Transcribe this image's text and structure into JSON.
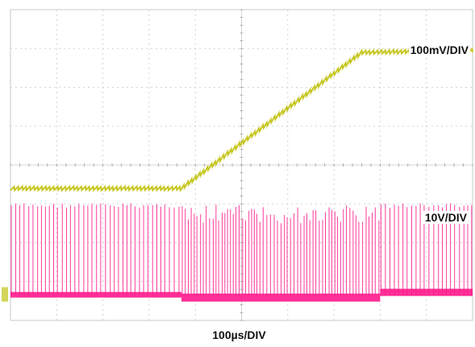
{
  "chart_data": {
    "type": "line",
    "x_divisions": 10,
    "y_divisions": 8,
    "xlabel": "100µs/DIV",
    "grid": true,
    "colors": {
      "background": "#ffffff",
      "grid": "#c8c8c8",
      "axis_ticks": "#a0a0a0",
      "ch1": "#c2c414",
      "ch2": "#ff1a8c"
    },
    "series": [
      {
        "scale_label": "100mV/DIV",
        "x_div": [
          0.0,
          3.7,
          7.6,
          10.0
        ],
        "y_div": [
          -0.6,
          -0.6,
          2.9,
          2.95
        ],
        "ripple_div": 0.1
      },
      {
        "scale_label": "10V/DIV",
        "baseline_div": -3.35,
        "pulse_top_div": -1.0,
        "regions_x_div": [
          {
            "start": 0.0,
            "end": 3.7,
            "activity": "switching"
          },
          {
            "start": 3.7,
            "end": 8.0,
            "activity": "dense-switching"
          },
          {
            "start": 8.0,
            "end": 10.0,
            "activity": "switching"
          }
        ]
      }
    ]
  }
}
